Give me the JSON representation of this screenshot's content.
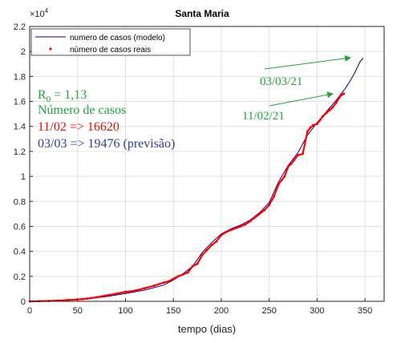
{
  "chart_data": {
    "type": "line",
    "title": "Santa Maria",
    "xlabel": "tempo (dias)",
    "ylabel": "",
    "xlim": [
      0,
      370
    ],
    "ylim": [
      0,
      22000
    ],
    "exponent_label": "×10",
    "exponent_power": "4",
    "xticks": [
      0,
      50,
      100,
      150,
      200,
      250,
      300,
      350
    ],
    "yticks": [
      0,
      2000,
      4000,
      6000,
      8000,
      10000,
      12000,
      14000,
      16000,
      18000,
      20000,
      22000
    ],
    "ytick_labels": [
      "0",
      "0.2",
      "0.4",
      "0.6",
      "0.8",
      "1",
      "1.2",
      "1.4",
      "1.6",
      "1.8",
      "2",
      "2.2"
    ],
    "grid": true,
    "legend_position": "top-left",
    "series": [
      {
        "name": "numero de casos (modelo)",
        "color": "#00008B",
        "style": "line",
        "x": [
          0,
          20,
          40,
          60,
          80,
          100,
          120,
          140,
          150,
          160,
          170,
          180,
          190,
          200,
          210,
          220,
          230,
          240,
          250,
          260,
          270,
          280,
          290,
          300,
          310,
          320,
          325,
          330,
          335,
          340,
          345,
          348
        ],
        "y": [
          0,
          50,
          120,
          200,
          380,
          620,
          900,
          1300,
          1700,
          2200,
          2800,
          3900,
          4700,
          5400,
          5800,
          6100,
          6500,
          7100,
          7900,
          9600,
          10900,
          11900,
          13300,
          14300,
          15200,
          16100,
          16600,
          17100,
          17700,
          18400,
          19200,
          19476
        ]
      },
      {
        "name": "número de casos reais",
        "color": "#FF0000",
        "style": "points",
        "x": [
          0,
          10,
          20,
          30,
          40,
          50,
          55,
          60,
          70,
          80,
          90,
          100,
          105,
          110,
          120,
          130,
          140,
          145,
          150,
          155,
          160,
          165,
          170,
          175,
          180,
          185,
          190,
          195,
          200,
          205,
          210,
          215,
          220,
          225,
          230,
          235,
          240,
          245,
          250,
          255,
          260,
          263,
          266,
          270,
          273,
          276,
          280,
          285,
          290,
          293,
          296,
          300,
          303,
          306,
          310,
          313,
          316,
          320,
          323,
          326,
          328
        ],
        "y": [
          0,
          10,
          30,
          60,
          100,
          150,
          170,
          220,
          330,
          470,
          600,
          760,
          790,
          860,
          1050,
          1250,
          1500,
          1600,
          1800,
          2000,
          2150,
          2300,
          2800,
          3000,
          3700,
          4100,
          4500,
          4800,
          5300,
          5550,
          5700,
          5850,
          6000,
          6150,
          6400,
          6700,
          7000,
          7300,
          7700,
          8400,
          9400,
          9700,
          10000,
          10800,
          11000,
          11300,
          11700,
          11800,
          13600,
          13900,
          14100,
          14200,
          14500,
          14800,
          15100,
          15300,
          15500,
          15900,
          16300,
          16550,
          16620
        ]
      }
    ],
    "annotations": {
      "r0": "R",
      "r0_sub": "0",
      "r0_value": " = 1,13",
      "casos_label": "Número de casos",
      "line_1102": "11/02 => 16620",
      "line_0303": "03/03 => 19476 (previsão)",
      "arrow_label_1": "03/03/21",
      "arrow_label_2": "11/02/21",
      "color_green": "#22A33A",
      "color_red": "#E01010",
      "color_blue": "#2E3D9E"
    }
  }
}
